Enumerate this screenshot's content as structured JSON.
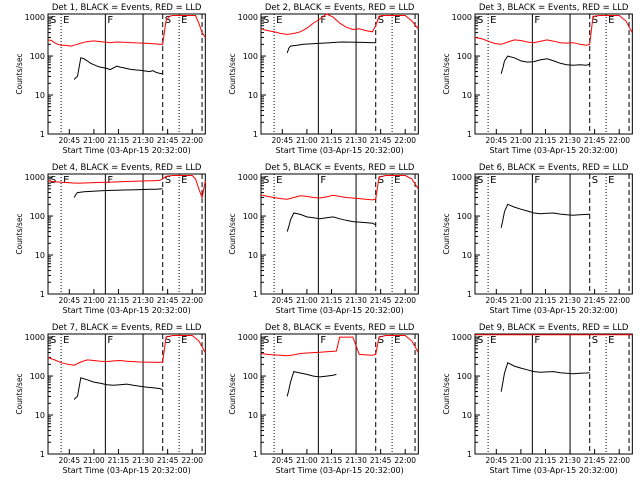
{
  "chart_data": [
    {
      "type": "line",
      "title": "Det 1, BLACK = Events, RED = LLD",
      "xlabel": "Start Time (03-Apr-15 20:32:00)",
      "ylabel": "Counts/sec",
      "xticks": [
        "20:45",
        "21:00",
        "21:15",
        "21:30",
        "21:45",
        "22:00"
      ],
      "yticks": [
        "1",
        "10",
        "100",
        "1000"
      ],
      "ylim": [
        1,
        1200
      ],
      "yscale": "log",
      "markers": [
        "S",
        "E",
        "F",
        "S",
        "E"
      ],
      "series": [
        {
          "name": "RED",
          "color": "#ff0000",
          "x": [
            0,
            2,
            4,
            6,
            8,
            10,
            12,
            14,
            16,
            18,
            20,
            22,
            24,
            26,
            28,
            30,
            32,
            34,
            36,
            38,
            40,
            42,
            44,
            46,
            48,
            50,
            52,
            54,
            56,
            58,
            60,
            62,
            64,
            66,
            68,
            70,
            72,
            74,
            76,
            78,
            80,
            82,
            84,
            86,
            88,
            90,
            92,
            94,
            96
          ],
          "y": [
            260,
            250,
            220,
            200,
            190,
            190,
            185,
            180,
            190,
            200,
            215,
            225,
            235,
            240,
            245,
            240,
            235,
            230,
            225,
            220,
            225,
            230,
            228,
            226,
            224,
            222,
            220,
            218,
            216,
            214,
            212,
            210,
            208,
            205,
            202,
            200,
            800,
            1050,
            1100,
            1100,
            1100,
            1100,
            1100,
            1100,
            1100,
            1100,
            700,
            400,
            300
          ]
        },
        {
          "name": "BLACK",
          "color": "#000000",
          "x": [
            16,
            17,
            18,
            20,
            22,
            24,
            26,
            28,
            30,
            32,
            34,
            36,
            38,
            40,
            42,
            44,
            46,
            48,
            50,
            52,
            54,
            56,
            58,
            60,
            62,
            64,
            66,
            68,
            70
          ],
          "y": [
            25,
            28,
            30,
            90,
            85,
            75,
            65,
            60,
            55,
            52,
            50,
            48,
            45,
            50,
            55,
            52,
            50,
            48,
            46,
            45,
            44,
            43,
            42,
            41,
            40,
            42,
            38,
            36,
            35
          ]
        }
      ]
    },
    {
      "type": "line",
      "title": "Det 2, BLACK = Events, RED = LLD",
      "xlabel": "Start Time (03-Apr-15 20:32:00)",
      "ylabel": "Counts/sec",
      "xticks": [
        "20:45",
        "21:00",
        "21:15",
        "21:30",
        "21:45",
        "22:00"
      ],
      "yticks": [
        "1",
        "10",
        "100",
        "1000"
      ],
      "ylim": [
        1,
        1200
      ],
      "yscale": "log",
      "markers": [
        "S",
        "E",
        "F",
        "S",
        "E"
      ],
      "series": [
        {
          "name": "RED",
          "color": "#ff0000",
          "x": [
            0,
            4,
            8,
            12,
            16,
            20,
            24,
            28,
            32,
            36,
            40,
            44,
            48,
            52,
            56,
            60,
            64,
            68,
            70,
            72,
            74,
            76,
            80,
            84,
            88,
            92,
            96
          ],
          "y": [
            500,
            450,
            420,
            380,
            360,
            380,
            420,
            520,
            700,
            900,
            1200,
            1000,
            700,
            550,
            480,
            500,
            450,
            420,
            600,
            1050,
            1100,
            1100,
            1100,
            1100,
            1100,
            800,
            500
          ]
        },
        {
          "name": "BLACK",
          "color": "#000000",
          "x": [
            16,
            17,
            18,
            22,
            26,
            30,
            34,
            38,
            42,
            46,
            50,
            54,
            58,
            62,
            66,
            70
          ],
          "y": [
            120,
            160,
            180,
            190,
            200,
            205,
            210,
            215,
            220,
            225,
            230,
            228,
            226,
            224,
            222,
            220
          ]
        }
      ]
    },
    {
      "type": "line",
      "title": "Det 3, BLACK = Events, RED = LLD",
      "xlabel": "Start Time (03-Apr-15 20:32:00)",
      "ylabel": "Counts/sec",
      "xticks": [
        "20:45",
        "21:00",
        "21:15",
        "21:30",
        "21:45",
        "22:00"
      ],
      "yticks": [
        "1",
        "10",
        "100",
        "1000"
      ],
      "ylim": [
        1,
        1200
      ],
      "yscale": "log",
      "markers": [
        "S",
        "E",
        "F",
        "S",
        "E"
      ],
      "series": [
        {
          "name": "RED",
          "color": "#ff0000",
          "x": [
            0,
            4,
            8,
            12,
            16,
            20,
            24,
            28,
            32,
            36,
            40,
            44,
            48,
            52,
            56,
            60,
            64,
            68,
            70,
            72,
            76,
            80,
            84,
            88,
            92,
            96
          ],
          "y": [
            300,
            280,
            240,
            210,
            200,
            230,
            260,
            250,
            230,
            220,
            240,
            260,
            240,
            220,
            215,
            220,
            200,
            190,
            200,
            1050,
            1100,
            1100,
            1100,
            1100,
            800,
            400
          ]
        },
        {
          "name": "BLACK",
          "color": "#000000",
          "x": [
            16,
            17,
            18,
            20,
            24,
            28,
            32,
            36,
            40,
            44,
            48,
            52,
            56,
            60,
            64,
            68,
            70
          ],
          "y": [
            35,
            50,
            75,
            100,
            90,
            75,
            70,
            72,
            80,
            85,
            75,
            65,
            60,
            58,
            60,
            58,
            62
          ]
        }
      ]
    },
    {
      "type": "line",
      "title": "Det 4, BLACK = Events, RED = LLD",
      "xlabel": "Start Time (03-Apr-15 20:32:00)",
      "ylabel": "Counts/sec",
      "xticks": [
        "20:45",
        "21:00",
        "21:15",
        "21:30",
        "21:45",
        "22:00"
      ],
      "yticks": [
        "1",
        "10",
        "100",
        "1000"
      ],
      "ylim": [
        1,
        1200
      ],
      "yscale": "log",
      "markers": [
        "S",
        "E",
        "F",
        "S",
        "E"
      ],
      "series": [
        {
          "name": "RED",
          "color": "#ff0000",
          "x": [
            0,
            4,
            8,
            12,
            16,
            20,
            24,
            28,
            32,
            36,
            40,
            44,
            48,
            52,
            56,
            60,
            64,
            68,
            70,
            72,
            76,
            80,
            84,
            88,
            90,
            92,
            94,
            96
          ],
          "y": [
            800,
            760,
            740,
            720,
            700,
            700,
            710,
            720,
            730,
            740,
            750,
            760,
            770,
            780,
            790,
            800,
            810,
            820,
            900,
            1050,
            1100,
            1100,
            1100,
            1100,
            900,
            500,
            300,
            800
          ]
        },
        {
          "name": "BLACK",
          "color": "#000000",
          "x": [
            16,
            17,
            18,
            22,
            26,
            30,
            34,
            38,
            42,
            46,
            50,
            54,
            58,
            62,
            66,
            70
          ],
          "y": [
            300,
            360,
            400,
            420,
            430,
            440,
            450,
            455,
            460,
            465,
            470,
            475,
            480,
            485,
            490,
            500
          ]
        }
      ]
    },
    {
      "type": "line",
      "title": "Det 5, BLACK = Events, RED = LLD",
      "xlabel": "Start Time (03-Apr-15 20:32:00)",
      "ylabel": "Counts/sec",
      "xticks": [
        "20:45",
        "21:00",
        "21:15",
        "21:30",
        "21:45",
        "22:00"
      ],
      "yticks": [
        "1",
        "10",
        "100",
        "1000"
      ],
      "ylim": [
        1,
        1200
      ],
      "yscale": "log",
      "markers": [
        "S",
        "E",
        "F",
        "S",
        "E"
      ],
      "series": [
        {
          "name": "RED",
          "color": "#ff0000",
          "x": [
            0,
            4,
            8,
            12,
            16,
            20,
            24,
            28,
            32,
            36,
            40,
            44,
            48,
            52,
            56,
            60,
            64,
            68,
            70,
            72,
            76,
            80,
            84,
            88,
            92,
            96
          ],
          "y": [
            350,
            320,
            300,
            280,
            270,
            300,
            330,
            320,
            300,
            290,
            310,
            340,
            320,
            300,
            290,
            280,
            270,
            260,
            270,
            1000,
            1100,
            1100,
            1100,
            1100,
            900,
            500
          ]
        },
        {
          "name": "BLACK",
          "color": "#000000",
          "x": [
            16,
            17,
            18,
            20,
            24,
            28,
            32,
            36,
            40,
            44,
            48,
            52,
            56,
            60,
            64,
            68,
            70
          ],
          "y": [
            40,
            55,
            80,
            120,
            110,
            95,
            90,
            85,
            90,
            95,
            85,
            78,
            72,
            70,
            68,
            65,
            60
          ]
        }
      ]
    },
    {
      "type": "line",
      "title": "Det 6, BLACK = Events, RED = LLD",
      "xlabel": "Start Time (03-Apr-15 20:32:00)",
      "ylabel": "Counts/sec",
      "xticks": [
        "20:45",
        "21:00",
        "21:15",
        "21:30",
        "21:45",
        "22:00"
      ],
      "yticks": [
        "1",
        "10",
        "100",
        "1000"
      ],
      "ylim": [
        1,
        1200
      ],
      "yscale": "log",
      "markers": [
        "S",
        "E",
        "F",
        "S",
        "E"
      ],
      "series": [
        {
          "name": "BLACK",
          "color": "#000000",
          "x": [
            16,
            17,
            18,
            20,
            24,
            28,
            32,
            36,
            40,
            44,
            48,
            52,
            56,
            60,
            64,
            68,
            70
          ],
          "y": [
            50,
            80,
            130,
            200,
            170,
            150,
            135,
            120,
            115,
            118,
            120,
            112,
            108,
            105,
            108,
            110,
            112
          ]
        }
      ]
    },
    {
      "type": "line",
      "title": "Det 7, BLACK = Events, RED = LLD",
      "xlabel": "Start Time (03-Apr-15 20:32:00)",
      "ylabel": "Counts/sec",
      "xticks": [
        "20:45",
        "21:00",
        "21:15",
        "21:30",
        "21:45",
        "22:00"
      ],
      "yticks": [
        "1",
        "10",
        "100",
        "1000"
      ],
      "ylim": [
        1,
        1200
      ],
      "yscale": "log",
      "markers": [
        "S",
        "E",
        "F",
        "S",
        "E"
      ],
      "series": [
        {
          "name": "RED",
          "color": "#ff0000",
          "x": [
            0,
            4,
            8,
            12,
            16,
            20,
            24,
            28,
            32,
            36,
            40,
            44,
            48,
            52,
            56,
            60,
            64,
            68,
            70,
            72,
            76,
            80,
            84,
            88,
            92,
            96
          ],
          "y": [
            300,
            260,
            220,
            200,
            190,
            230,
            260,
            250,
            240,
            235,
            245,
            250,
            240,
            235,
            230,
            228,
            226,
            224,
            230,
            1000,
            1100,
            1100,
            1100,
            1100,
            800,
            400
          ]
        },
        {
          "name": "BLACK",
          "color": "#000000",
          "x": [
            16,
            17,
            18,
            20,
            24,
            28,
            32,
            36,
            40,
            44,
            48,
            52,
            56,
            60,
            64,
            68,
            70
          ],
          "y": [
            25,
            28,
            30,
            90,
            80,
            70,
            65,
            60,
            58,
            60,
            62,
            58,
            55,
            52,
            50,
            48,
            45
          ]
        }
      ]
    },
    {
      "type": "line",
      "title": "Det 8, BLACK = Events, RED = LLD",
      "xlabel": "Start Time (03-Apr-15 20:32:00)",
      "ylabel": "Counts/sec",
      "xticks": [
        "20:45",
        "21:00",
        "21:15",
        "21:30",
        "21:45",
        "22:00"
      ],
      "yticks": [
        "1",
        "10",
        "100",
        "1000"
      ],
      "ylim": [
        1,
        1200
      ],
      "yscale": "log",
      "markers": [
        "S",
        "E",
        "F",
        "S",
        "E"
      ],
      "series": [
        {
          "name": "RED",
          "color": "#ff0000",
          "x": [
            0,
            4,
            8,
            12,
            16,
            20,
            24,
            28,
            32,
            36,
            40,
            44,
            46,
            48,
            56,
            60,
            64,
            68,
            70,
            72,
            76,
            80,
            84,
            88,
            92,
            96
          ],
          "y": [
            380,
            360,
            350,
            340,
            330,
            350,
            380,
            390,
            400,
            410,
            420,
            430,
            440,
            1000,
            1000,
            360,
            350,
            340,
            360,
            1000,
            1100,
            1100,
            1100,
            1100,
            800,
            400
          ]
        },
        {
          "name": "BLACK",
          "color": "#000000",
          "x": [
            16,
            17,
            18,
            20,
            24,
            28,
            32,
            36,
            40,
            44,
            46
          ],
          "y": [
            30,
            45,
            70,
            130,
            120,
            110,
            100,
            95,
            100,
            105,
            110
          ]
        }
      ]
    },
    {
      "type": "line",
      "title": "Det 9, BLACK = Events, RED = LLD",
      "xlabel": "Start Time (03-Apr-15 20:32:00)",
      "ylabel": "Counts/sec",
      "xticks": [
        "20:45",
        "21:00",
        "21:15",
        "21:30",
        "21:45",
        "22:00"
      ],
      "yticks": [
        "1",
        "10",
        "100",
        "1000"
      ],
      "ylim": [
        1,
        1200
      ],
      "yscale": "log",
      "markers": [
        "S",
        "E",
        "F",
        "S",
        "E"
      ],
      "series": [
        {
          "name": "RED",
          "color": "#ff0000",
          "x": [
            0,
            8,
            16,
            24,
            32,
            40,
            48,
            56,
            64,
            72,
            80,
            88,
            96
          ],
          "y": [
            1150,
            1150,
            1150,
            1150,
            1150,
            1150,
            1150,
            1150,
            1150,
            1150,
            1150,
            1150,
            1150
          ]
        },
        {
          "name": "BLACK",
          "color": "#000000",
          "x": [
            16,
            17,
            18,
            20,
            24,
            28,
            32,
            36,
            40,
            44,
            48,
            52,
            56,
            60,
            64,
            68,
            70
          ],
          "y": [
            40,
            70,
            120,
            220,
            180,
            160,
            145,
            130,
            125,
            128,
            130,
            122,
            118,
            115,
            118,
            120,
            122
          ]
        }
      ]
    }
  ]
}
